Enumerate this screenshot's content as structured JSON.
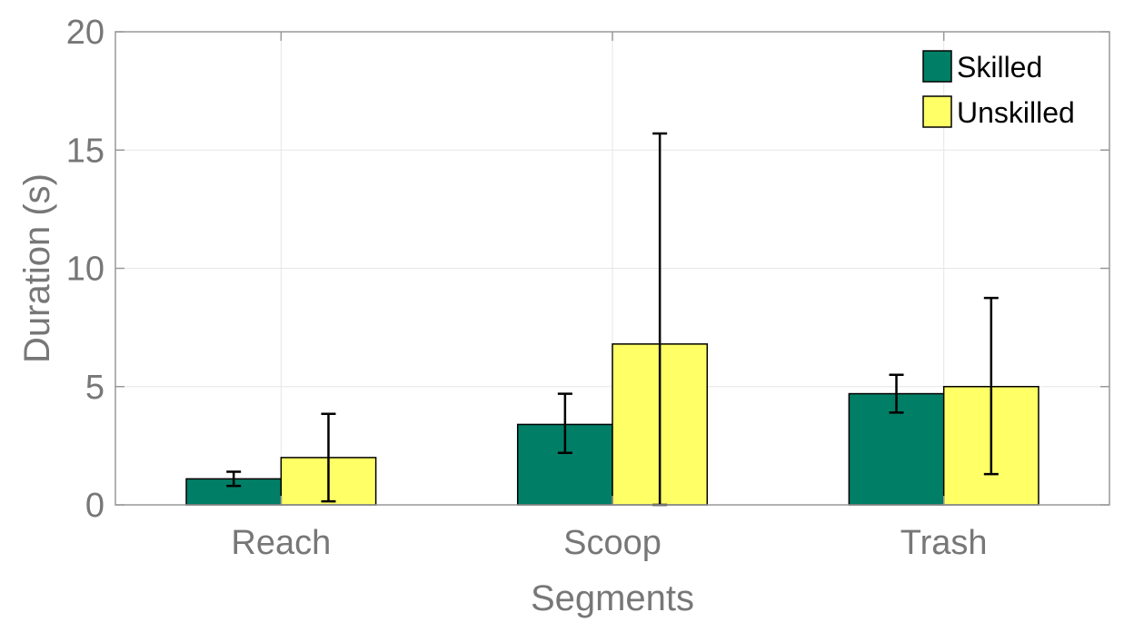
{
  "chart_data": {
    "type": "bar",
    "title": "",
    "xlabel": "Segments",
    "ylabel": "Duration (s)",
    "categories": [
      "Reach",
      "Scoop",
      "Trash"
    ],
    "ylim": [
      0,
      20
    ],
    "yticks": [
      0,
      5,
      10,
      15,
      20
    ],
    "grid": true,
    "legend_position": "top-right",
    "series": [
      {
        "name": "Skilled",
        "color": "#007F66",
        "values": [
          1.1,
          3.4,
          4.7
        ],
        "err_low": [
          0.8,
          2.2,
          3.9
        ],
        "err_high": [
          1.4,
          4.7,
          5.5
        ]
      },
      {
        "name": "Unskilled",
        "color": "#FFFF66",
        "values": [
          2.0,
          6.8,
          5.0
        ],
        "err_low": [
          0.15,
          0,
          1.3
        ],
        "err_high": [
          3.85,
          15.7,
          8.75
        ]
      }
    ]
  }
}
